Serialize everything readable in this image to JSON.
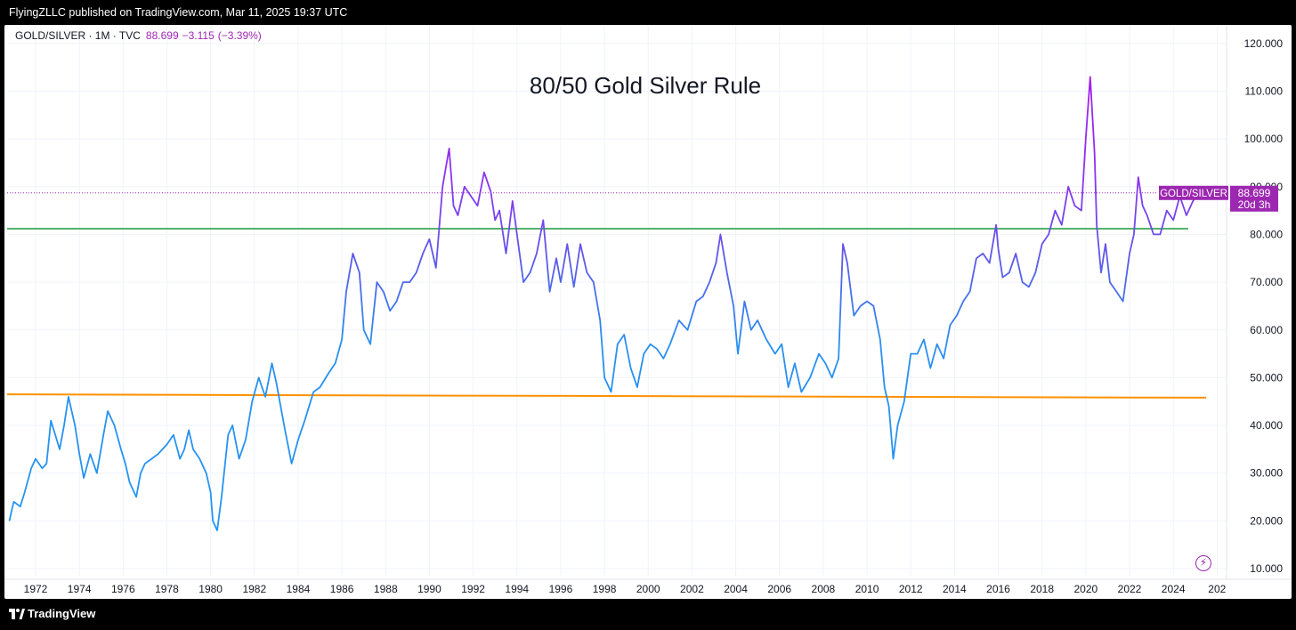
{
  "header": {
    "published": "FlyingZLLC published on TradingView.com, Mar 11, 2025 19:37 UTC"
  },
  "legend": {
    "symbol": "GOLD/SILVER · 1M · TVC",
    "last": "88.699",
    "change": "−3.115",
    "change_pct": "(−3.39%)"
  },
  "price_label": {
    "name": "GOLD/SILVER",
    "value": "88.699",
    "countdown": "20d 3h"
  },
  "footer": {
    "brand": "TradingView"
  },
  "icons": {
    "logo": "tradingview-logo-icon",
    "flash": "lightning-icon"
  },
  "colors": {
    "line_blue": "#2196f3",
    "line_purple": "#9c27f3",
    "level_green": "#1b9c3a",
    "level_orange": "#ff9100",
    "price_line": "#9c27b0",
    "background": "#ffffff",
    "frame": "#000000"
  },
  "chart_data": {
    "type": "line",
    "title": "80/50 Gold Silver Rule",
    "xlabel": "",
    "ylabel": "",
    "x_ticks": [
      "1972",
      "1974",
      "1976",
      "1978",
      "1980",
      "1982",
      "1984",
      "1986",
      "1988",
      "1990",
      "1992",
      "1994",
      "1996",
      "1998",
      "2000",
      "2002",
      "2004",
      "2006",
      "2008",
      "2010",
      "2012",
      "2014",
      "2016",
      "2018",
      "2020",
      "2022",
      "2024",
      "202"
    ],
    "y_ticks": [
      "120.000",
      "110.000",
      "100.000",
      "90.000",
      "80.000",
      "70.000",
      "60.000",
      "50.000",
      "40.000",
      "30.000",
      "20.000",
      "10.000"
    ],
    "ylim": [
      8,
      123
    ],
    "xlim": [
      1970.7,
      2026.5
    ],
    "grid": true,
    "gradient": "blue to purple as value rises",
    "series": [
      {
        "x": [
          1970.8,
          1971.0,
          1971.3,
          1971.5,
          1971.8,
          1972.0,
          1972.3,
          1972.5,
          1972.7,
          1972.9,
          1973.1,
          1973.3,
          1973.5,
          1973.8,
          1974.0,
          1974.2,
          1974.5,
          1974.8,
          1975.1,
          1975.3,
          1975.6,
          1975.9,
          1976.1,
          1976.3,
          1976.6,
          1976.8,
          1977.0,
          1977.3,
          1977.6,
          1978.0,
          1978.3,
          1978.6,
          1978.8,
          1979.0,
          1979.2,
          1979.5,
          1979.8,
          1980.0,
          1980.1,
          1980.3,
          1980.5,
          1980.8,
          1981.0,
          1981.3,
          1981.6,
          1981.9,
          1982.2,
          1982.5,
          1982.8,
          1983.0,
          1983.2,
          1983.4,
          1983.7,
          1984.0,
          1984.3,
          1984.7,
          1985.0,
          1985.4,
          1985.7,
          1986.0,
          1986.2,
          1986.5,
          1986.8,
          1987.0,
          1987.3,
          1987.6,
          1987.9,
          1988.2,
          1988.5,
          1988.8,
          1989.1,
          1989.4,
          1989.7,
          1990.0,
          1990.3,
          1990.6,
          1990.9,
          1991.1,
          1991.3,
          1991.6,
          1991.9,
          1992.2,
          1992.5,
          1992.8,
          1993.0,
          1993.2,
          1993.5,
          1993.8,
          1994.0,
          1994.3,
          1994.6,
          1994.9,
          1995.2,
          1995.5,
          1995.8,
          1996.0,
          1996.3,
          1996.6,
          1996.9,
          1997.2,
          1997.5,
          1997.8,
          1998.0,
          1998.3,
          1998.6,
          1998.9,
          1999.2,
          1999.5,
          1999.8,
          2000.1,
          2000.4,
          2000.7,
          2001.0,
          2001.4,
          2001.8,
          2002.2,
          2002.5,
          2002.8,
          2003.1,
          2003.3,
          2003.6,
          2003.9,
          2004.1,
          2004.4,
          2004.7,
          2005.0,
          2005.4,
          2005.8,
          2006.1,
          2006.4,
          2006.7,
          2007.0,
          2007.4,
          2007.8,
          2008.1,
          2008.4,
          2008.7,
          2008.9,
          2009.1,
          2009.4,
          2009.7,
          2010.0,
          2010.3,
          2010.6,
          2010.8,
          2011.0,
          2011.2,
          2011.4,
          2011.7,
          2012.0,
          2012.3,
          2012.6,
          2012.9,
          2013.2,
          2013.5,
          2013.8,
          2014.1,
          2014.4,
          2014.7,
          2015.0,
          2015.3,
          2015.6,
          2015.9,
          2016.0,
          2016.2,
          2016.5,
          2016.8,
          2017.1,
          2017.4,
          2017.7,
          2018.0,
          2018.3,
          2018.6,
          2018.9,
          2019.2,
          2019.5,
          2019.8,
          2020.0,
          2020.2,
          2020.4,
          2020.5,
          2020.7,
          2020.9,
          2021.1,
          2021.4,
          2021.7,
          2022.0,
          2022.2,
          2022.4,
          2022.6,
          2022.8,
          2023.1,
          2023.4,
          2023.7,
          2024.0,
          2024.3,
          2024.6,
          2024.9,
          2025.2
        ],
        "y": [
          20,
          24,
          23,
          26,
          31,
          33,
          31,
          32,
          41,
          38,
          35,
          40,
          46,
          40,
          34,
          29,
          34,
          30,
          38,
          43,
          40,
          35,
          32,
          28,
          25,
          30,
          32,
          33,
          34,
          36,
          38,
          33,
          35,
          39,
          35,
          33,
          30,
          26,
          20,
          18,
          25,
          38,
          40,
          33,
          37,
          45,
          50,
          46,
          53,
          49,
          44,
          39,
          32,
          37,
          41,
          47,
          48,
          51,
          53,
          58,
          68,
          76,
          72,
          60,
          57,
          70,
          68,
          64,
          66,
          70,
          70,
          72,
          76,
          79,
          73,
          90,
          98,
          86,
          84,
          90,
          88,
          86,
          93,
          89,
          83,
          85,
          76,
          87,
          80,
          70,
          72,
          76,
          83,
          68,
          75,
          70,
          78,
          69,
          78,
          72,
          70,
          62,
          50,
          47,
          57,
          59,
          52,
          48,
          55,
          57,
          56,
          54,
          57,
          62,
          60,
          66,
          67,
          70,
          74,
          80,
          72,
          65,
          55,
          66,
          60,
          62,
          58,
          55,
          57,
          48,
          53,
          47,
          50,
          55,
          53,
          50,
          54,
          78,
          74,
          63,
          65,
          66,
          65,
          58,
          48,
          44,
          33,
          40,
          45,
          55,
          55,
          58,
          52,
          57,
          54,
          61,
          63,
          66,
          68,
          75,
          76,
          74,
          82,
          77,
          71,
          72,
          76,
          70,
          69,
          72,
          78,
          80,
          85,
          82,
          90,
          86,
          85,
          100,
          113,
          97,
          82,
          72,
          78,
          70,
          68,
          66,
          76,
          80,
          92,
          86,
          84,
          80,
          80,
          85,
          83,
          88,
          84,
          87,
          89
        ]
      }
    ],
    "levels": [
      {
        "name": "80",
        "value": 81.2,
        "color": "#1b9c3a"
      },
      {
        "name": "50",
        "value_start": 46.5,
        "value_end": 45.8,
        "color": "#ff9100"
      }
    ],
    "current_price_line": 88.7
  }
}
